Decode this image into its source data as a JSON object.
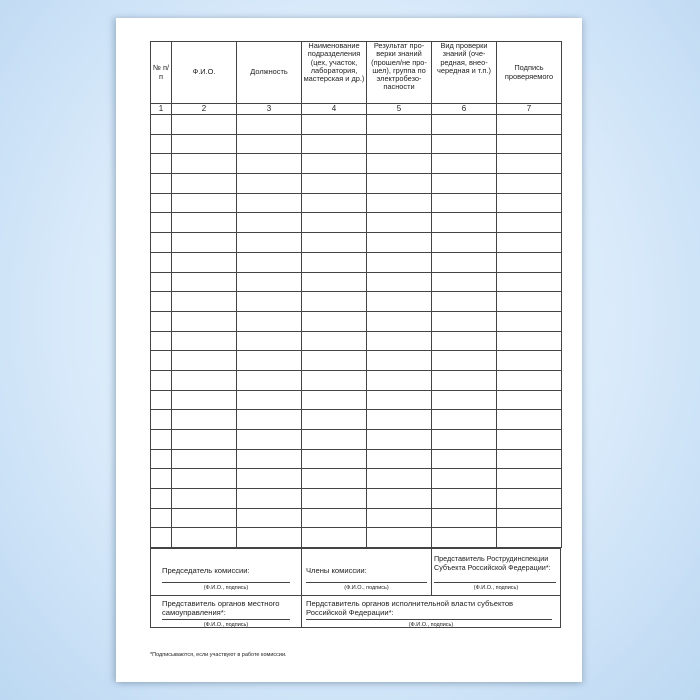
{
  "table": {
    "headers": [
      "№ п/п",
      "Ф.И.О.",
      "Должность",
      "Наименование подразделения (цех, участок, лаборатория, мастерская и др.)",
      "Результат про-верки знаний (прошел/не про-шел), группа по электробезо-пасности",
      "Вид проверки знаний (оче-редная, внео-чередная и т.п.)",
      "Подпись проверяемого"
    ],
    "numbers": [
      "1",
      "2",
      "3",
      "4",
      "5",
      "6",
      "7"
    ],
    "empty_rows": 22
  },
  "signatures": {
    "chairman": "Председатель комиссии:",
    "members": "Члены комиссии:",
    "rostrud": "Представитель Рострудинспекции Субъекта Российской Федерации*:",
    "local": "Представитель органов местного самоуправления*:",
    "executive": "Перд­ставитель органов исполнительной власти субъектов Российской Федерации*:",
    "caption": "(Ф.И.О., подпись)"
  },
  "footnote": "*Подписываются, если участвуют в работе комиссии."
}
